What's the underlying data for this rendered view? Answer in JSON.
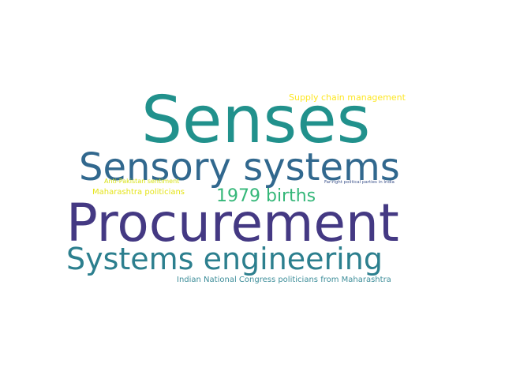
{
  "words": [
    {
      "id": "senses",
      "text": "Senses",
      "color": "#21918c"
    },
    {
      "id": "sensory",
      "text": "Sensory systems",
      "color": "#31688e"
    },
    {
      "id": "procurement",
      "text": "Procurement",
      "color": "#443983"
    },
    {
      "id": "systems",
      "text": "Systems engineering",
      "color": "#2c7f8e"
    },
    {
      "id": "births",
      "text": "1979 births",
      "color": "#35b779"
    },
    {
      "id": "supply",
      "text": "Supply chain management",
      "color": "#fde725"
    },
    {
      "id": "antipak",
      "text": "Anti-Pakistan sentiment",
      "color": "#d8e219"
    },
    {
      "id": "maharashtra",
      "text": "Maharashtra politicians",
      "color": "#e5e419"
    },
    {
      "id": "farright",
      "text": "Far-right political parties in India",
      "color": "#3b528b"
    },
    {
      "id": "inc",
      "text": "Indian National Congress politicians from Maharashtra",
      "color": "#3e8e9a"
    }
  ]
}
